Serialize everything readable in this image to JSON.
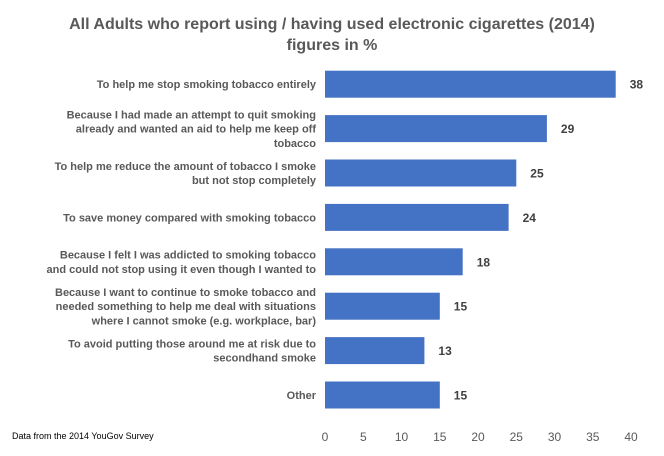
{
  "chart_data": {
    "type": "bar",
    "orientation": "horizontal",
    "title_lines": [
      "All Adults who report using / having used electronic cigarettes (2014)",
      "figures in %"
    ],
    "categories": [
      [
        "To help me stop smoking tobacco entirely"
      ],
      [
        "Because I had made an attempt to quit smoking",
        "already and wanted an aid to help me keep off",
        "tobacco"
      ],
      [
        "To help me reduce the amount of tobacco I smoke",
        "but not stop completely"
      ],
      [
        "To save money compared with smoking tobacco"
      ],
      [
        "Because I felt I was addicted to smoking tobacco",
        "and could not stop using it even though I wanted to"
      ],
      [
        "Because I want to continue to smoke tobacco and",
        "needed something to help me deal with situations",
        "where I cannot smoke (e.g. workplace, bar)"
      ],
      [
        "To avoid putting those around me at risk due to",
        "secondhand smoke"
      ],
      [
        "Other"
      ]
    ],
    "values": [
      38,
      29,
      25,
      24,
      18,
      15,
      13,
      15
    ],
    "xlim": [
      0,
      40
    ],
    "xticks": [
      0,
      5,
      10,
      15,
      20,
      25,
      30,
      35,
      40
    ],
    "grid": false,
    "bar_color": "#4472C4",
    "source_note": "Data from the 2014 YouGov Survey"
  }
}
